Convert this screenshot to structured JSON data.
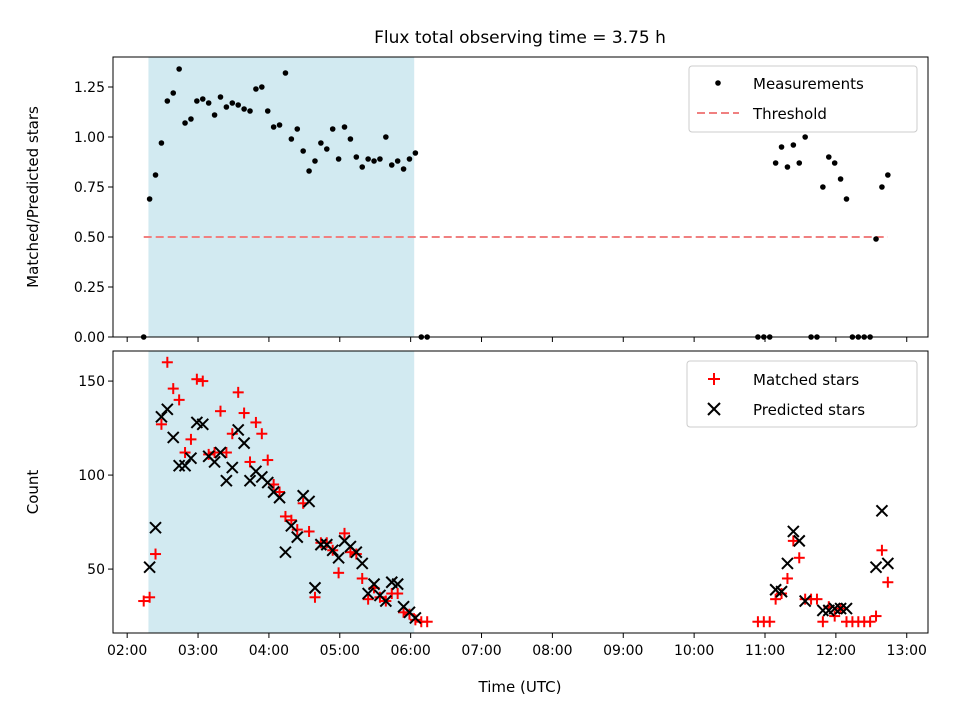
{
  "figure": {
    "title": "Flux total observing time = 3.75 h",
    "xlabel": "Time (UTC)"
  },
  "colors": {
    "measurements": "#000000",
    "threshold": "#f08080",
    "matched": "#ff0000",
    "predicted": "#000000",
    "shade": "#add8e6"
  },
  "chart_data": [
    {
      "type": "scatter",
      "panel": "top",
      "ylabel": "Matched/Predicted stars",
      "xlim": [
        "01:48",
        "13:18"
      ],
      "ylim": [
        0,
        1.4
      ],
      "yticks": [
        "0.00",
        "0.25",
        "0.50",
        "0.75",
        "1.00",
        "1.25"
      ],
      "xticks": [
        "02:00",
        "03:00",
        "04:00",
        "05:00",
        "06:00",
        "07:00",
        "08:00",
        "09:00",
        "10:00",
        "11:00",
        "12:00",
        "13:00"
      ],
      "shaded_region": [
        "02:18",
        "06:03"
      ],
      "legend": {
        "placement": "top-right",
        "entries": [
          "Measurements",
          "Threshold"
        ]
      },
      "series": [
        {
          "name": "Measurements",
          "marker": "dot",
          "points": [
            [
              "02:14",
              0.0
            ],
            [
              "02:19",
              0.69
            ],
            [
              "02:24",
              0.81
            ],
            [
              "02:29",
              0.97
            ],
            [
              "02:34",
              1.18
            ],
            [
              "02:39",
              1.22
            ],
            [
              "02:44",
              1.34
            ],
            [
              "02:49",
              1.07
            ],
            [
              "02:54",
              1.09
            ],
            [
              "02:59",
              1.18
            ],
            [
              "03:04",
              1.19
            ],
            [
              "03:09",
              1.17
            ],
            [
              "03:14",
              1.11
            ],
            [
              "03:19",
              1.2
            ],
            [
              "03:24",
              1.15
            ],
            [
              "03:29",
              1.17
            ],
            [
              "03:34",
              1.16
            ],
            [
              "03:39",
              1.14
            ],
            [
              "03:44",
              1.13
            ],
            [
              "03:49",
              1.24
            ],
            [
              "03:54",
              1.25
            ],
            [
              "03:59",
              1.13
            ],
            [
              "04:04",
              1.05
            ],
            [
              "04:09",
              1.06
            ],
            [
              "04:14",
              1.32
            ],
            [
              "04:19",
              0.99
            ],
            [
              "04:24",
              1.04
            ],
            [
              "04:29",
              0.93
            ],
            [
              "04:34",
              0.83
            ],
            [
              "04:39",
              0.88
            ],
            [
              "04:44",
              0.97
            ],
            [
              "04:49",
              0.94
            ],
            [
              "04:54",
              1.04
            ],
            [
              "04:59",
              0.89
            ],
            [
              "05:04",
              1.05
            ],
            [
              "05:09",
              0.99
            ],
            [
              "05:14",
              0.9
            ],
            [
              "05:19",
              0.85
            ],
            [
              "05:24",
              0.89
            ],
            [
              "05:29",
              0.88
            ],
            [
              "05:34",
              0.89
            ],
            [
              "05:39",
              1.0
            ],
            [
              "05:44",
              0.86
            ],
            [
              "05:49",
              0.88
            ],
            [
              "05:54",
              0.84
            ],
            [
              "05:59",
              0.89
            ],
            [
              "06:04",
              0.92
            ],
            [
              "06:09",
              0.0
            ],
            [
              "06:14",
              0.0
            ],
            [
              "10:54",
              0.0
            ],
            [
              "10:59",
              0.0
            ],
            [
              "11:04",
              0.0
            ],
            [
              "11:09",
              0.87
            ],
            [
              "11:14",
              0.95
            ],
            [
              "11:19",
              0.85
            ],
            [
              "11:24",
              0.96
            ],
            [
              "11:29",
              0.87
            ],
            [
              "11:34",
              1.0
            ],
            [
              "11:39",
              0.0
            ],
            [
              "11:44",
              0.0
            ],
            [
              "11:49",
              0.75
            ],
            [
              "11:54",
              0.9
            ],
            [
              "11:59",
              0.87
            ],
            [
              "12:04",
              0.79
            ],
            [
              "12:09",
              0.69
            ],
            [
              "12:14",
              0.0
            ],
            [
              "12:19",
              0.0
            ],
            [
              "12:24",
              0.0
            ],
            [
              "12:29",
              0.0
            ],
            [
              "12:34",
              0.49
            ],
            [
              "12:39",
              0.75
            ],
            [
              "12:44",
              0.81
            ]
          ]
        },
        {
          "name": "Threshold",
          "marker": "dashed-line",
          "points": [
            [
              "02:14",
              0.5
            ],
            [
              "12:44",
              0.5
            ]
          ]
        }
      ]
    },
    {
      "type": "scatter",
      "panel": "bottom",
      "ylabel": "Count",
      "xlim": [
        "01:48",
        "13:18"
      ],
      "ylim": [
        16,
        166
      ],
      "yticks": [
        "50",
        "100",
        "150"
      ],
      "xticks": [
        "02:00",
        "03:00",
        "04:00",
        "05:00",
        "06:00",
        "07:00",
        "08:00",
        "09:00",
        "10:00",
        "11:00",
        "12:00",
        "13:00"
      ],
      "shaded_region": [
        "02:18",
        "06:03"
      ],
      "legend": {
        "placement": "top-right",
        "entries": [
          "Matched stars",
          "Predicted stars"
        ]
      },
      "series": [
        {
          "name": "Matched stars",
          "marker": "plus",
          "points": [
            [
              "02:14",
              33
            ],
            [
              "02:19",
              35
            ],
            [
              "02:24",
              58
            ],
            [
              "02:29",
              127
            ],
            [
              "02:34",
              160
            ],
            [
              "02:39",
              146
            ],
            [
              "02:44",
              140
            ],
            [
              "02:49",
              112
            ],
            [
              "02:54",
              119
            ],
            [
              "02:59",
              151
            ],
            [
              "03:04",
              150
            ],
            [
              "03:09",
              111
            ],
            [
              "03:14",
              112
            ],
            [
              "03:19",
              134
            ],
            [
              "03:24",
              112
            ],
            [
              "03:29",
              122
            ],
            [
              "03:34",
              144
            ],
            [
              "03:39",
              133
            ],
            [
              "03:44",
              107
            ],
            [
              "03:49",
              128
            ],
            [
              "03:54",
              122
            ],
            [
              "03:59",
              108
            ],
            [
              "04:04",
              95
            ],
            [
              "04:09",
              91
            ],
            [
              "04:14",
              78
            ],
            [
              "04:19",
              76
            ],
            [
              "04:24",
              71
            ],
            [
              "04:29",
              85
            ],
            [
              "04:34",
              70
            ],
            [
              "04:39",
              35
            ],
            [
              "04:44",
              64
            ],
            [
              "04:49",
              64
            ],
            [
              "04:54",
              60
            ],
            [
              "04:59",
              48
            ],
            [
              "05:04",
              69
            ],
            [
              "05:09",
              59
            ],
            [
              "05:14",
              58
            ],
            [
              "05:19",
              45
            ],
            [
              "05:24",
              34
            ],
            [
              "05:29",
              40
            ],
            [
              "05:34",
              35
            ],
            [
              "05:39",
              33
            ],
            [
              "05:44",
              37
            ],
            [
              "05:49",
              37
            ],
            [
              "05:54",
              27
            ],
            [
              "05:59",
              26
            ],
            [
              "06:04",
              23
            ],
            [
              "06:09",
              22
            ],
            [
              "06:14",
              22
            ],
            [
              "10:54",
              22
            ],
            [
              "10:59",
              22
            ],
            [
              "11:04",
              22
            ],
            [
              "11:09",
              34
            ],
            [
              "11:14",
              37
            ],
            [
              "11:19",
              45
            ],
            [
              "11:24",
              65
            ],
            [
              "11:29",
              56
            ],
            [
              "11:34",
              34
            ],
            [
              "11:39",
              34
            ],
            [
              "11:44",
              34
            ],
            [
              "11:49",
              22
            ],
            [
              "11:54",
              30
            ],
            [
              "11:59",
              25
            ],
            [
              "12:04",
              29
            ],
            [
              "12:09",
              22
            ],
            [
              "12:14",
              22
            ],
            [
              "12:19",
              22
            ],
            [
              "12:24",
              22
            ],
            [
              "12:29",
              22
            ],
            [
              "12:34",
              25
            ],
            [
              "12:39",
              60
            ],
            [
              "12:44",
              43
            ]
          ]
        },
        {
          "name": "Predicted stars",
          "marker": "x",
          "points": [
            [
              "02:19",
              51
            ],
            [
              "02:24",
              72
            ],
            [
              "02:29",
              131
            ],
            [
              "02:34",
              135
            ],
            [
              "02:39",
              120
            ],
            [
              "02:44",
              105
            ],
            [
              "02:49",
              105
            ],
            [
              "02:54",
              109
            ],
            [
              "02:59",
              128
            ],
            [
              "03:04",
              127
            ],
            [
              "03:09",
              110
            ],
            [
              "03:14",
              107
            ],
            [
              "03:19",
              112
            ],
            [
              "03:24",
              97
            ],
            [
              "03:29",
              104
            ],
            [
              "03:34",
              124
            ],
            [
              "03:39",
              117
            ],
            [
              "03:44",
              97
            ],
            [
              "03:49",
              102
            ],
            [
              "03:54",
              99
            ],
            [
              "03:59",
              96
            ],
            [
              "04:04",
              91
            ],
            [
              "04:09",
              88
            ],
            [
              "04:14",
              59
            ],
            [
              "04:19",
              73
            ],
            [
              "04:24",
              67
            ],
            [
              "04:29",
              89
            ],
            [
              "04:34",
              86
            ],
            [
              "04:39",
              40
            ],
            [
              "04:44",
              63
            ],
            [
              "04:49",
              63
            ],
            [
              "04:54",
              60
            ],
            [
              "04:59",
              56
            ],
            [
              "05:04",
              65
            ],
            [
              "05:09",
              62
            ],
            [
              "05:14",
              59
            ],
            [
              "05:19",
              53
            ],
            [
              "05:24",
              37
            ],
            [
              "05:29",
              42
            ],
            [
              "05:34",
              36
            ],
            [
              "05:39",
              33
            ],
            [
              "05:44",
              43
            ],
            [
              "05:49",
              42
            ],
            [
              "05:54",
              30
            ],
            [
              "05:59",
              27
            ],
            [
              "06:04",
              24
            ],
            [
              "11:09",
              39
            ],
            [
              "11:14",
              38
            ],
            [
              "11:19",
              53
            ],
            [
              "11:24",
              70
            ],
            [
              "11:29",
              65
            ],
            [
              "11:34",
              33
            ],
            [
              "11:49",
              28
            ],
            [
              "11:54",
              28
            ],
            [
              "11:59",
              29
            ],
            [
              "12:04",
              29
            ],
            [
              "12:09",
              29
            ],
            [
              "12:34",
              51
            ],
            [
              "12:39",
              81
            ],
            [
              "12:44",
              53
            ]
          ]
        }
      ]
    }
  ]
}
